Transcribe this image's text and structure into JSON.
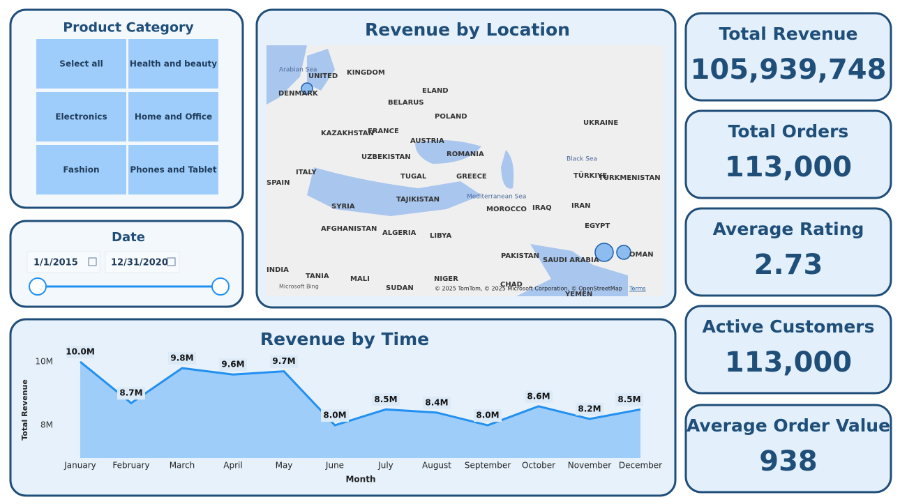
{
  "product_category": {
    "title": "Product Category",
    "items": [
      "Select all",
      "Health and beauty",
      "Electronics",
      "Home and Office",
      "Fashion",
      "Phones and Tablet"
    ]
  },
  "date": {
    "title": "Date",
    "start": "1/1/2015",
    "end": "12/31/2020"
  },
  "map": {
    "title": "Revenue by Location",
    "labels": [
      "UNITED",
      "KINGDOM",
      "DENMARK",
      "ELAND",
      "BELARUS",
      "POLAND",
      "UKRAINE",
      "KAZAKHSTAN",
      "FRANCE",
      "AUSTRIA",
      "ROMANIA",
      "Black Sea",
      "UZBEKISTAN",
      "ITALY",
      "SPAIN",
      "TUGAL",
      "GREECE",
      "TÜRKIYE",
      "TURKMENISTAN",
      "TAJIKISTAN",
      "Mediterranean Sea",
      "SYRIA",
      "MOROCCO",
      "IRAQ",
      "IRAN",
      "AFGHANISTAN",
      "ALGERIA",
      "LIBYA",
      "EGYPT",
      "PAKISTAN",
      "SAUDI ARABIA",
      "OMAN",
      "INDIA",
      "TANIA",
      "MALI",
      "NIGER",
      "SUDAN",
      "CHAD",
      "YEMEN",
      "Arabian Sea"
    ],
    "bing": "Microsoft Bing",
    "attribution": "© 2025 TomTom, © 2025 Microsoft Corporation, © OpenStreetMap",
    "terms": "Terms"
  },
  "kpis": [
    {
      "title": "Total Revenue",
      "value": "105,939,748"
    },
    {
      "title": "Total Orders",
      "value": "113,000"
    },
    {
      "title": "Average Rating",
      "value": "2.73"
    },
    {
      "title": "Active Customers",
      "value": "113,000"
    },
    {
      "title": "Average Order Value",
      "value": "938"
    }
  ],
  "chart_data": {
    "type": "area",
    "title": "Revenue by Time",
    "x_label": "Month",
    "y_label": "Total Revenue",
    "categories": [
      "January",
      "February",
      "March",
      "April",
      "May",
      "June",
      "July",
      "August",
      "September",
      "October",
      "November",
      "December"
    ],
    "values": [
      10000000,
      8700000,
      9800000,
      9600000,
      9700000,
      8000000,
      8500000,
      8400000,
      8000000,
      8600000,
      8200000,
      8500000
    ],
    "value_labels": [
      "10.0M",
      "8.7M",
      "9.8M",
      "9.6M",
      "9.7M",
      "8.0M",
      "8.5M",
      "8.4M",
      "8.0M",
      "8.6M",
      "8.2M",
      "8.5M"
    ],
    "ylim": [
      6970000,
      10000000
    ],
    "yticks": [
      {
        "value": 8000000,
        "label": "8M"
      },
      {
        "value": 10000000,
        "label": "10M"
      }
    ],
    "color": "#2290f0",
    "fill": "#9fcdfa"
  }
}
